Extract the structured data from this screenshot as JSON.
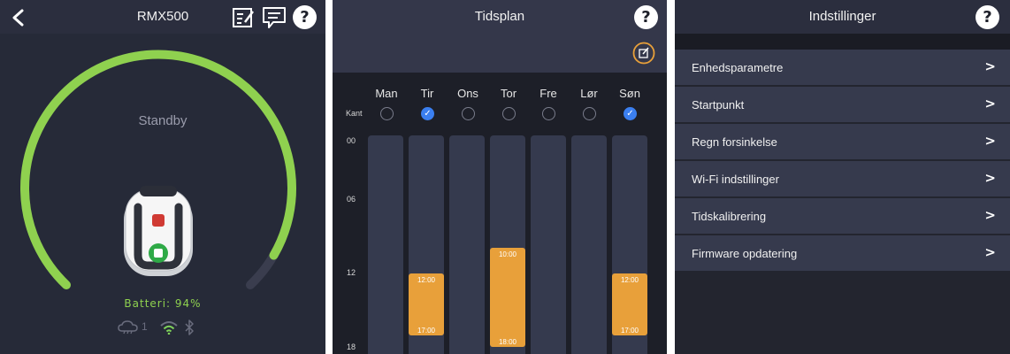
{
  "status_panel": {
    "title": "RMX500",
    "status": "Standby",
    "battery_label": "Batteri: 94%",
    "battery_percent": 94,
    "cloud_count": "1",
    "icons": [
      "back-chevron-icon",
      "edit-list-icon",
      "message-icon",
      "help-icon",
      "cloud-icon",
      "wifi-icon",
      "bluetooth-icon"
    ],
    "accent": "#8fd14f"
  },
  "schedule_panel": {
    "title": "Tidsplan",
    "kant_label": "Kant",
    "days": [
      {
        "name": "Man",
        "kant": false
      },
      {
        "name": "Tir",
        "kant": true
      },
      {
        "name": "Ons",
        "kant": false
      },
      {
        "name": "Tor",
        "kant": false
      },
      {
        "name": "Fre",
        "kant": false
      },
      {
        "name": "Lør",
        "kant": false
      },
      {
        "name": "Søn",
        "kant": true
      }
    ],
    "hours": [
      "00",
      "06",
      "12",
      "18"
    ],
    "blocks": [
      {
        "day": "Tir",
        "start": "12:00",
        "end": "17:00"
      },
      {
        "day": "Tor",
        "start": "10:00",
        "end": "18:00"
      },
      {
        "day": "Søn",
        "start": "12:00",
        "end": "17:00"
      }
    ],
    "block_color": "#e8a03a",
    "check_color": "#3b7ff0"
  },
  "settings_panel": {
    "title": "Indstillinger",
    "items": [
      {
        "label": "Enhedsparametre"
      },
      {
        "label": "Startpunkt"
      },
      {
        "label": "Regn forsinkelse"
      },
      {
        "label": "Wi-Fi indstillinger"
      },
      {
        "label": "Tidskalibrering"
      },
      {
        "label": "Firmware opdatering"
      }
    ]
  },
  "help_glyph": "?",
  "chevron_glyph": ">",
  "check_glyph": "✓"
}
